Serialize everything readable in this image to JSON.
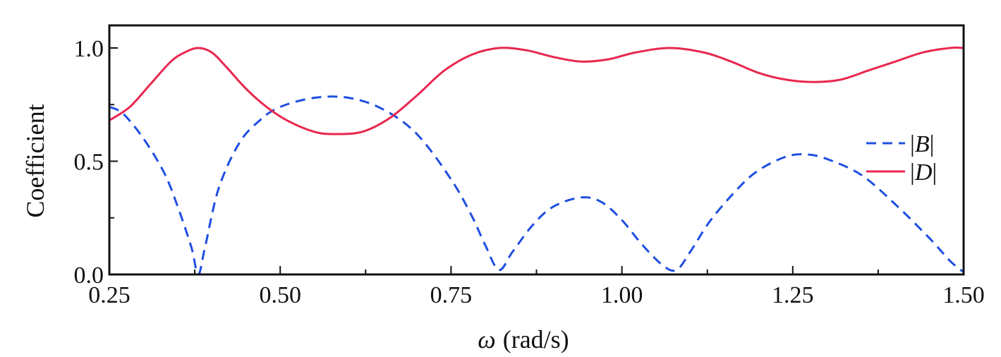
{
  "chart_data": {
    "type": "line",
    "title": "",
    "xlabel": {
      "symbol": "ω",
      "unit": "(rad/s)"
    },
    "ylabel": "Coefficient",
    "xlim": [
      0.25,
      1.5
    ],
    "ylim": [
      0.0,
      1.1
    ],
    "x_ticks": [
      0.25,
      0.5,
      0.75,
      1.0,
      1.25,
      1.5
    ],
    "x_tick_labels": [
      "0.25",
      "0.50",
      "0.75",
      "1.00",
      "1.25",
      "1.50"
    ],
    "y_ticks": [
      0.0,
      0.5,
      1.0
    ],
    "y_tick_labels": [
      "0.0",
      "0.5",
      "1.0"
    ],
    "grid": false,
    "legend_position": "right",
    "series": [
      {
        "name": "|B|",
        "legend": {
          "bar_left": "|",
          "letter": "B",
          "bar_right": "|"
        },
        "color": "#1f4fe0",
        "style": "dashed",
        "x": [
          0.25,
          0.27,
          0.3,
          0.33,
          0.35,
          0.37,
          0.38,
          0.39,
          0.41,
          0.44,
          0.47,
          0.5,
          0.55,
          0.6,
          0.65,
          0.7,
          0.75,
          0.78,
          0.8,
          0.82,
          0.84,
          0.87,
          0.9,
          0.94,
          0.97,
          1.0,
          1.03,
          1.06,
          1.08,
          1.1,
          1.13,
          1.17,
          1.2,
          1.24,
          1.27,
          1.3,
          1.35,
          1.4,
          1.45,
          1.48,
          1.5
        ],
        "y": [
          0.74,
          0.71,
          0.6,
          0.45,
          0.3,
          0.12,
          0.0,
          0.12,
          0.38,
          0.58,
          0.68,
          0.74,
          0.78,
          0.78,
          0.73,
          0.62,
          0.42,
          0.26,
          0.13,
          0.02,
          0.1,
          0.22,
          0.3,
          0.34,
          0.32,
          0.24,
          0.13,
          0.04,
          0.02,
          0.1,
          0.24,
          0.38,
          0.46,
          0.52,
          0.53,
          0.51,
          0.44,
          0.31,
          0.16,
          0.06,
          0.01
        ]
      },
      {
        "name": "|D|",
        "legend": {
          "bar_left": "|",
          "letter": "D",
          "bar_right": "|"
        },
        "color": "#e8274f",
        "style": "solid",
        "x": [
          0.25,
          0.28,
          0.31,
          0.34,
          0.36,
          0.38,
          0.4,
          0.42,
          0.45,
          0.48,
          0.51,
          0.55,
          0.58,
          0.62,
          0.66,
          0.7,
          0.74,
          0.78,
          0.82,
          0.86,
          0.9,
          0.94,
          0.98,
          1.02,
          1.07,
          1.12,
          1.16,
          1.2,
          1.24,
          1.28,
          1.32,
          1.36,
          1.4,
          1.44,
          1.48,
          1.5
        ],
        "y": [
          0.68,
          0.74,
          0.84,
          0.94,
          0.98,
          1.0,
          0.98,
          0.92,
          0.82,
          0.74,
          0.68,
          0.63,
          0.62,
          0.63,
          0.69,
          0.79,
          0.9,
          0.97,
          1.0,
          0.99,
          0.96,
          0.94,
          0.95,
          0.98,
          1.0,
          0.98,
          0.94,
          0.89,
          0.86,
          0.85,
          0.86,
          0.9,
          0.94,
          0.98,
          1.0,
          1.0
        ]
      }
    ]
  }
}
